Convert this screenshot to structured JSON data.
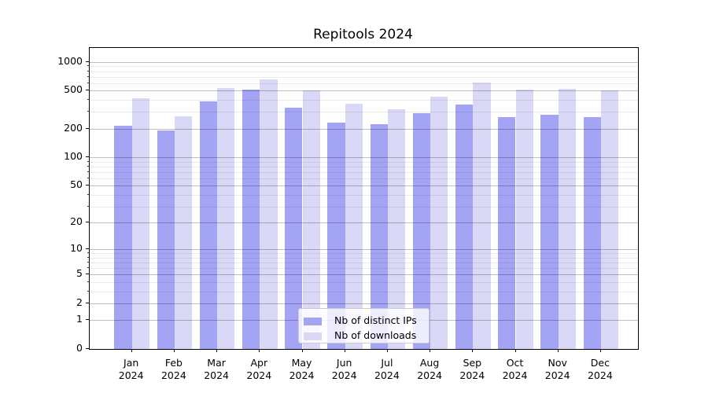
{
  "chart_data": {
    "type": "bar",
    "title": "Repitools 2024",
    "categories": [
      "Jan",
      "Feb",
      "Mar",
      "Apr",
      "May",
      "Jun",
      "Jul",
      "Aug",
      "Sep",
      "Oct",
      "Nov",
      "Dec"
    ],
    "x_tick_year": "2024",
    "series": [
      {
        "name": "Nb of distinct IPs",
        "color": "#a4a4f4",
        "values": [
          213,
          192,
          385,
          518,
          335,
          232,
          222,
          292,
          357,
          264,
          279,
          263
        ]
      },
      {
        "name": "Nb of downloads",
        "color": "#d9d9f7",
        "values": [
          418,
          269,
          538,
          659,
          508,
          366,
          317,
          429,
          614,
          513,
          525,
          502
        ]
      }
    ],
    "yscale": "log10(1+y)",
    "y_major_ticks": [
      0,
      1,
      2,
      5,
      10,
      20,
      50,
      100,
      200,
      500,
      1000
    ],
    "y_minor_ticks": [
      3,
      4,
      6,
      7,
      8,
      9,
      30,
      40,
      60,
      70,
      80,
      90,
      300,
      400,
      600,
      700,
      800,
      900
    ],
    "ylim": [
      0,
      1400
    ],
    "grid": true,
    "legend_position": "lower center inside"
  },
  "colors": {
    "background": "#ffffff",
    "axis": "#000000",
    "grid_major": "rgba(0,0,0,0.25)",
    "grid_minor": "rgba(0,0,0,0.08)",
    "legend_border": "#cccccc",
    "legend_bg": "rgba(255,255,255,0.8)"
  }
}
